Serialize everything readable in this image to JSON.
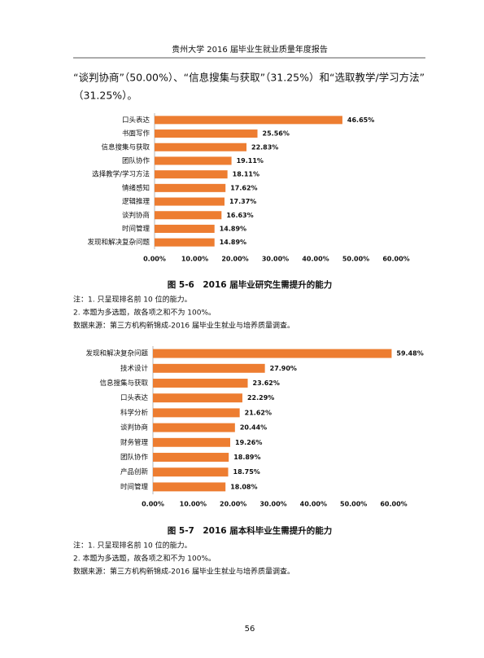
{
  "header": {
    "title": "贵州大学 2016 届毕业生就业质量年度报告"
  },
  "paragraph": [
    "“谈判协商”（50.00%）、“信息搜集与获取”（31.25%）和“选取教学/学习方法”",
    "（31.25%）。"
  ],
  "chart_data": [
    {
      "type": "bar",
      "orientation": "horizontal",
      "title": "图 5-6　2016 届毕业研究生需提升的能力",
      "categories": [
        "口头表达",
        "书面写作",
        "信息搜集与获取",
        "团队协作",
        "选择教学/学习方法",
        "情绪感知",
        "逻辑推理",
        "谈判协商",
        "时间管理",
        "发现和解决复杂问题"
      ],
      "values": [
        46.65,
        25.56,
        22.83,
        19.11,
        18.11,
        17.62,
        17.37,
        16.63,
        14.89,
        14.89
      ],
      "value_labels": [
        "46.65%",
        "25.56%",
        "22.83%",
        "19.11%",
        "18.11%",
        "17.62%",
        "17.37%",
        "16.63%",
        "14.89%",
        "14.89%"
      ],
      "color": "#ed7d31",
      "xlim": [
        0,
        60
      ],
      "xticks": [
        {
          "value": 0,
          "label": "0.00%"
        },
        {
          "value": 10,
          "label": "10.00%"
        },
        {
          "value": 20,
          "label": "20.00%"
        },
        {
          "value": 30,
          "label": "30.00%"
        },
        {
          "value": 40,
          "label": "40.00%"
        },
        {
          "value": 50,
          "label": "50.00%"
        },
        {
          "value": 60,
          "label": "60.00%"
        }
      ],
      "grid": false,
      "notes": [
        "注：1. 只呈现排名前 10 位的能力。",
        "2. 本题为多选题，故各项之和不为 100%。",
        "数据来源：第三方机构新锦成-2016 届毕业生就业与培养质量调查。"
      ]
    },
    {
      "type": "bar",
      "orientation": "horizontal",
      "title": "图 5-7　2016 届本科毕业生需提升的能力",
      "categories": [
        "发现和解决复杂问题",
        "技术设计",
        "信息搜集与获取",
        "口头表达",
        "科学分析",
        "谈判协商",
        "财务管理",
        "团队协作",
        "产品创新",
        "时间管理"
      ],
      "values": [
        59.48,
        27.9,
        23.62,
        22.29,
        21.62,
        20.44,
        19.26,
        18.89,
        18.75,
        18.08
      ],
      "value_labels": [
        "59.48%",
        "27.90%",
        "23.62%",
        "22.29%",
        "21.62%",
        "20.44%",
        "19.26%",
        "18.89%",
        "18.75%",
        "18.08%"
      ],
      "color": "#ed7d31",
      "xlim": [
        0,
        60
      ],
      "xticks": [
        {
          "value": 0,
          "label": "0.00%"
        },
        {
          "value": 10,
          "label": "10.00%"
        },
        {
          "value": 20,
          "label": "20.00%"
        },
        {
          "value": 30,
          "label": "30.00%"
        },
        {
          "value": 40,
          "label": "40.00%"
        },
        {
          "value": 50,
          "label": "50.00%"
        },
        {
          "value": 60,
          "label": "60.00%"
        }
      ],
      "grid": false,
      "notes": [
        "注：1. 只呈现排名前 10 位的能力。",
        "2. 本题为多选题，故各项之和不为 100%。",
        "数据来源：第三方机构新锦成-2016 届毕业生就业与培养质量调查。"
      ]
    }
  ],
  "page_number": "56"
}
